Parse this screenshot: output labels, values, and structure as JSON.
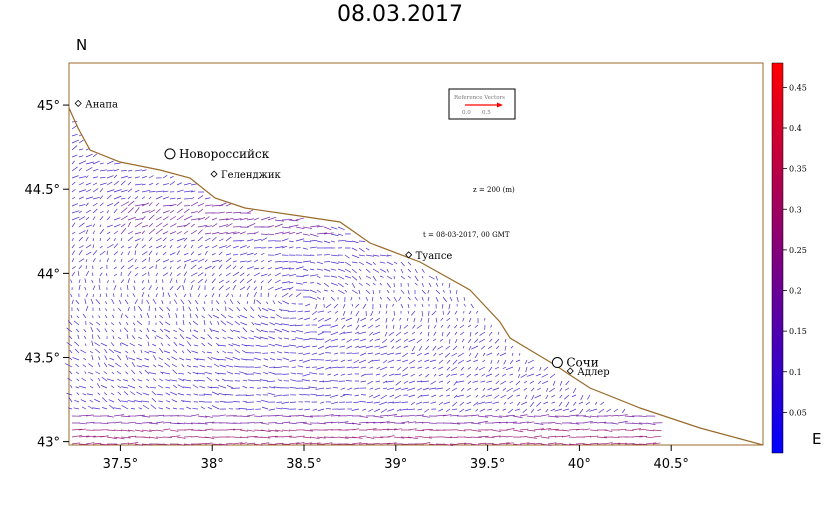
{
  "title": "08.03.2017",
  "north_label": "N",
  "east_label": "E",
  "chart_data": {
    "type": "map",
    "x_ticks": [
      "37.5°",
      "38°",
      "38.5°",
      "39°",
      "39.5°",
      "40°",
      "40.5°"
    ],
    "x_tick_values": [
      37.5,
      38.0,
      38.5,
      39.0,
      39.5,
      40.0,
      40.5
    ],
    "y_ticks": [
      "43°",
      "43.5°",
      "44°",
      "44.5°",
      "45°"
    ],
    "y_tick_values": [
      43.0,
      43.5,
      44.0,
      44.5,
      45.0
    ],
    "xlim": [
      37.22,
      41.0
    ],
    "ylim": [
      42.98,
      45.25
    ],
    "cities": [
      {
        "name": "Анапа",
        "lon": 37.27,
        "lat": 45.01
      },
      {
        "name": "Новороссийск",
        "lon": 37.77,
        "lat": 44.71
      },
      {
        "name": "Геленджик",
        "lon": 38.01,
        "lat": 44.59
      },
      {
        "name": "Туапсе",
        "lon": 39.07,
        "lat": 44.11
      },
      {
        "name": "Сочи",
        "lon": 39.88,
        "lat": 43.47
      },
      {
        "name": "Адлер",
        "lon": 39.95,
        "lat": 43.42
      }
    ],
    "annotation_depth": "z = 200 (m)",
    "annotation_time": "t = 08-03-2017, 00 GMT",
    "reference_vector": {
      "title": "Reference Vectors",
      "labels": [
        "0.0",
        "0.5"
      ]
    },
    "colorbar": {
      "ticks": [
        "0.05",
        "0.1",
        "0.15",
        "0.2",
        "0.25",
        "0.3",
        "0.35",
        "0.4",
        "0.45"
      ],
      "tick_values": [
        0.05,
        0.1,
        0.15,
        0.2,
        0.25,
        0.3,
        0.35,
        0.4,
        0.45
      ],
      "range": [
        0.0,
        0.48
      ],
      "colors": [
        "#0000ff",
        "#ff0000"
      ]
    },
    "coast_color": "#9a6a2a",
    "vector_color": "#5a1fc8"
  }
}
